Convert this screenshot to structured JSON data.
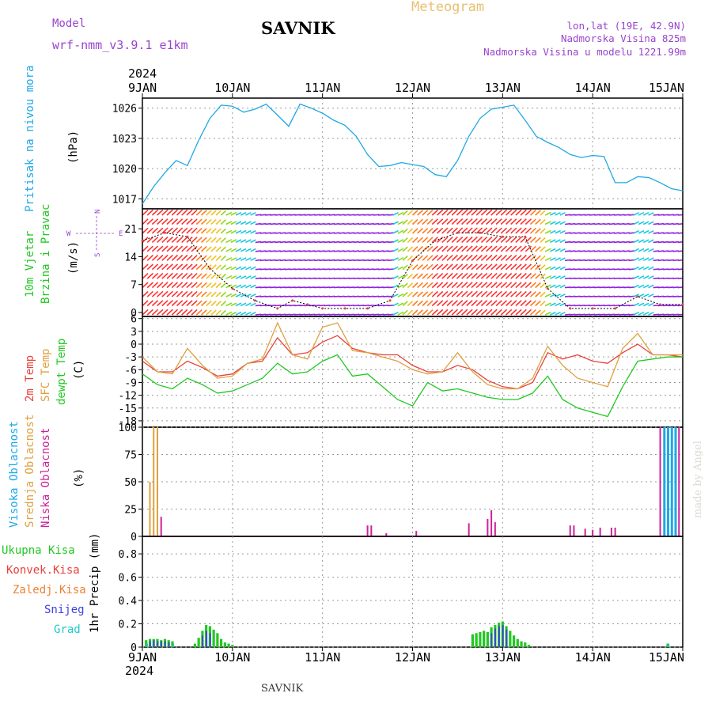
{
  "header": {
    "meteogram_label": "Meteogram",
    "station": "SAVNIK",
    "model_label": "Model",
    "model_name": "wrf-nmm_v3.9.1 e1km",
    "lonlat": "lon,lat (19E, 42.9N)",
    "elevation": "Nadmorska Visina 825m",
    "elevation_model": "Nadmorska Visina u modelu 1221.99m",
    "year_top": "2024",
    "year_bottom": "2024",
    "footer_station": "SAVNIK",
    "credit": "made by Angel"
  },
  "colors": {
    "pressure": "#1ea8e8",
    "temp": "#e8403c",
    "sfc_temp": "#e0a040",
    "dewpt": "#22c822",
    "high_cloud": "#1ea8e8",
    "mid_cloud": "#e0a040",
    "low_cloud": "#cc2299",
    "total_precip": "#22c822",
    "conv_precip": "#e8403c",
    "frz_precip": "#f08030",
    "snow": "#4040e0",
    "graupel": "#22c8c8",
    "wind_label": "#22c822"
  },
  "legend_labels": {
    "pressure": "Pritisak na nivou mora",
    "pressure_unit": "(hPa)",
    "wind_1": "10m Vjetar",
    "wind_2": "Brzina i Pravac",
    "wind_unit": "(m/s)",
    "compass_n": "N",
    "compass_s": "S",
    "compass_e": "E",
    "compass_w": "W",
    "temp": "2m Temp",
    "sfc_temp": "SFC Temp",
    "dewpt": "dewpt Temp",
    "temp_unit": "(C)",
    "high_cloud": "Visoka Oblacnost",
    "mid_cloud": "Srednja Oblacnost",
    "low_cloud": "Niska Oblacnost",
    "cloud_unit": "(%)",
    "total_precip": "Ukupna Kisa",
    "conv_precip": "Konvek.Kisa",
    "frz_precip": "Zaledj.Kisa",
    "snow": "Snijeg",
    "graupel": "Grad",
    "precip_unit": "1hr Precip (mm)"
  },
  "chart_data": [
    {
      "type": "line",
      "x_ticks": [
        "9JAN",
        "10JAN",
        "11JAN",
        "12JAN",
        "13JAN",
        "14JAN",
        "15JAN"
      ],
      "xlim_hours": [
        0,
        144
      ],
      "yticks": [
        1017,
        1020,
        1023,
        1026
      ],
      "ylim": [
        1016.0,
        1027.0
      ],
      "grid": true,
      "series": [
        {
          "name": "Pritisak na nivou mora",
          "hours": [
            0,
            3,
            6,
            9,
            12,
            15,
            18,
            21,
            24,
            27,
            30,
            33,
            36,
            39,
            42,
            45,
            48,
            51,
            54,
            57,
            60,
            63,
            66,
            69,
            72,
            75,
            78,
            81,
            84,
            87,
            90,
            93,
            96,
            99,
            102,
            105,
            108,
            111,
            114,
            117,
            120,
            123,
            126,
            129,
            132,
            135,
            138,
            141,
            144
          ],
          "values": [
            1016.5,
            1018.2,
            1019.6,
            1020.8,
            1020.3,
            1022.8,
            1025.0,
            1026.3,
            1026.2,
            1025.6,
            1025.9,
            1026.4,
            1025.3,
            1024.2,
            1026.4,
            1026.0,
            1025.5,
            1024.8,
            1024.3,
            1023.2,
            1021.4,
            1020.2,
            1020.3,
            1020.6,
            1020.4,
            1020.2,
            1019.4,
            1019.2,
            1020.8,
            1023.2,
            1025.0,
            1025.9,
            1026.1,
            1026.3,
            1024.8,
            1023.2,
            1022.6,
            1022.1,
            1021.4,
            1021.1,
            1021.3,
            1021.2,
            1018.6,
            1018.6,
            1019.2,
            1019.1,
            1018.6,
            1018.0,
            1017.8
          ]
        }
      ]
    },
    {
      "type": "scatter",
      "x_ticks": [
        "9JAN",
        "10JAN",
        "11JAN",
        "12JAN",
        "13JAN",
        "14JAN",
        "15JAN"
      ],
      "xlim_hours": [
        0,
        144
      ],
      "yticks": [
        0,
        7,
        14,
        21
      ],
      "ylim": [
        -1,
        26
      ],
      "grid": true,
      "series": [
        {
          "name": "10m Vjetar",
          "hours": [
            0,
            6,
            12,
            18,
            24,
            30,
            36,
            40,
            44,
            48,
            54,
            60,
            66,
            72,
            78,
            84,
            90,
            96,
            102,
            108,
            114,
            120,
            126,
            132,
            138,
            144
          ],
          "values": [
            18,
            20,
            19,
            11,
            6,
            3,
            1,
            3,
            2,
            1,
            1,
            1,
            3,
            13,
            18,
            20,
            20,
            19,
            19,
            6,
            1,
            1,
            1,
            4,
            2,
            2
          ]
        }
      ]
    },
    {
      "type": "line",
      "x_ticks": [
        "9JAN",
        "10JAN",
        "11JAN",
        "12JAN",
        "13JAN",
        "14JAN",
        "15JAN"
      ],
      "xlim_hours": [
        0,
        144
      ],
      "yticks": [
        -18,
        -15,
        -12,
        -9,
        -6,
        -3,
        0,
        3,
        6
      ],
      "ylim": [
        -19.5,
        6.5
      ],
      "grid": true,
      "series": [
        {
          "name": "2m Temp",
          "hours": [
            0,
            4,
            8,
            12,
            16,
            20,
            24,
            28,
            32,
            36,
            40,
            44,
            48,
            52,
            56,
            60,
            64,
            68,
            72,
            76,
            80,
            84,
            88,
            92,
            96,
            100,
            104,
            108,
            112,
            116,
            120,
            124,
            128,
            132,
            136,
            140,
            144
          ],
          "values": [
            -4,
            -6.5,
            -6.5,
            -4,
            -5.5,
            -7.5,
            -7,
            -4.5,
            -4,
            1.5,
            -2.5,
            -2,
            0.5,
            2,
            -1,
            -2,
            -2.5,
            -2.5,
            -5,
            -6.5,
            -6.5,
            -5,
            -6,
            -8.5,
            -10,
            -10.5,
            -9,
            -2,
            -3.5,
            -2.5,
            -4,
            -4.5,
            -2,
            0,
            -2.5,
            -2.5,
            -3
          ]
        },
        {
          "name": "SFC Temp",
          "hours": [
            0,
            4,
            8,
            12,
            16,
            20,
            24,
            28,
            32,
            36,
            40,
            44,
            48,
            52,
            56,
            60,
            64,
            68,
            72,
            76,
            80,
            84,
            88,
            92,
            96,
            100,
            104,
            108,
            112,
            116,
            120,
            124,
            128,
            132,
            136,
            140,
            144
          ],
          "values": [
            -3,
            -6.5,
            -7,
            -1,
            -5,
            -8,
            -7.5,
            -4.5,
            -3.5,
            5,
            -2.5,
            -3.5,
            4,
            5,
            -1.5,
            -2,
            -3,
            -4,
            -6,
            -7,
            -6.5,
            -2,
            -6.5,
            -9.5,
            -10.5,
            -10.5,
            -8,
            -0.5,
            -5,
            -8,
            -9,
            -10,
            -1,
            2.5,
            -2.5,
            -2.5,
            -2.5
          ]
        },
        {
          "name": "dewpt Temp",
          "hours": [
            0,
            4,
            8,
            12,
            16,
            20,
            24,
            28,
            32,
            36,
            40,
            44,
            48,
            52,
            56,
            60,
            64,
            68,
            72,
            76,
            80,
            84,
            88,
            92,
            96,
            100,
            104,
            108,
            112,
            116,
            120,
            124,
            128,
            132,
            136,
            140,
            144
          ],
          "values": [
            -7,
            -9.5,
            -10.5,
            -8,
            -9.5,
            -11.5,
            -11,
            -9.5,
            -8,
            -4.5,
            -7,
            -6.5,
            -4,
            -2.5,
            -7.5,
            -7,
            -10,
            -13,
            -14.5,
            -9,
            -11,
            -10.5,
            -11.5,
            -12.5,
            -13,
            -13,
            -11.5,
            -7.5,
            -13,
            -15,
            -16,
            -17,
            -10,
            -4,
            -3.5,
            -3,
            -3
          ]
        }
      ]
    },
    {
      "type": "bar",
      "x_ticks": [
        "9JAN",
        "10JAN",
        "11JAN",
        "12JAN",
        "13JAN",
        "14JAN",
        "15JAN"
      ],
      "xlim_hours": [
        0,
        144
      ],
      "yticks": [
        0,
        25,
        50,
        75,
        100
      ],
      "ylim": [
        0,
        100
      ],
      "grid": true,
      "series": [
        {
          "name": "Visoka Oblacnost",
          "hours": [
            139,
            140,
            141,
            142
          ],
          "values": [
            100,
            100,
            100,
            100
          ]
        },
        {
          "name": "Srednja Oblacnost",
          "hours": [
            2,
            3,
            4
          ],
          "values": [
            50,
            100,
            100
          ]
        },
        {
          "name": "Niska Oblacnost",
          "hours": [
            5,
            60,
            61,
            65,
            73,
            87,
            92,
            93,
            94,
            114,
            115,
            118,
            120,
            122,
            125,
            126,
            138,
            143
          ],
          "values": [
            18,
            10,
            10,
            3,
            5,
            12,
            16,
            24,
            13,
            10,
            10,
            7,
            6,
            8,
            8,
            8,
            100,
            100
          ]
        }
      ]
    },
    {
      "type": "bar",
      "x_ticks": [
        "9JAN",
        "10JAN",
        "11JAN",
        "12JAN",
        "13JAN",
        "14JAN",
        "15JAN"
      ],
      "xlim_hours": [
        0,
        144
      ],
      "yticks": [
        0,
        0.2,
        0.4,
        0.6,
        0.8
      ],
      "ylim": [
        0,
        0.95
      ],
      "grid": true,
      "series": [
        {
          "name": "Ukupna Kisa",
          "hours": [
            1,
            2,
            3,
            4,
            5,
            6,
            7,
            8,
            14,
            15,
            16,
            17,
            18,
            19,
            20,
            21,
            22,
            23,
            24,
            88,
            89,
            90,
            91,
            92,
            93,
            94,
            95,
            96,
            97,
            98,
            99,
            100,
            101,
            102,
            103,
            140
          ],
          "values": [
            0.06,
            0.07,
            0.07,
            0.07,
            0.06,
            0.07,
            0.06,
            0.05,
            0.03,
            0.08,
            0.14,
            0.19,
            0.18,
            0.15,
            0.12,
            0.07,
            0.04,
            0.03,
            0.02,
            0.11,
            0.12,
            0.13,
            0.14,
            0.13,
            0.17,
            0.19,
            0.21,
            0.22,
            0.18,
            0.14,
            0.1,
            0.07,
            0.05,
            0.04,
            0.02,
            0.03
          ]
        },
        {
          "name": "Snijeg",
          "hours": [
            2,
            3,
            4,
            5,
            6,
            7,
            16,
            17,
            18,
            93,
            94,
            95,
            96,
            97
          ],
          "values": [
            0.05,
            0.06,
            0.05,
            0.05,
            0.05,
            0.04,
            0.1,
            0.14,
            0.12,
            0.12,
            0.16,
            0.18,
            0.19,
            0.15
          ]
        },
        {
          "name": "Grad",
          "hours": [
            1,
            8,
            140
          ],
          "values": [
            0.03,
            0.03,
            0.03
          ]
        }
      ]
    }
  ]
}
